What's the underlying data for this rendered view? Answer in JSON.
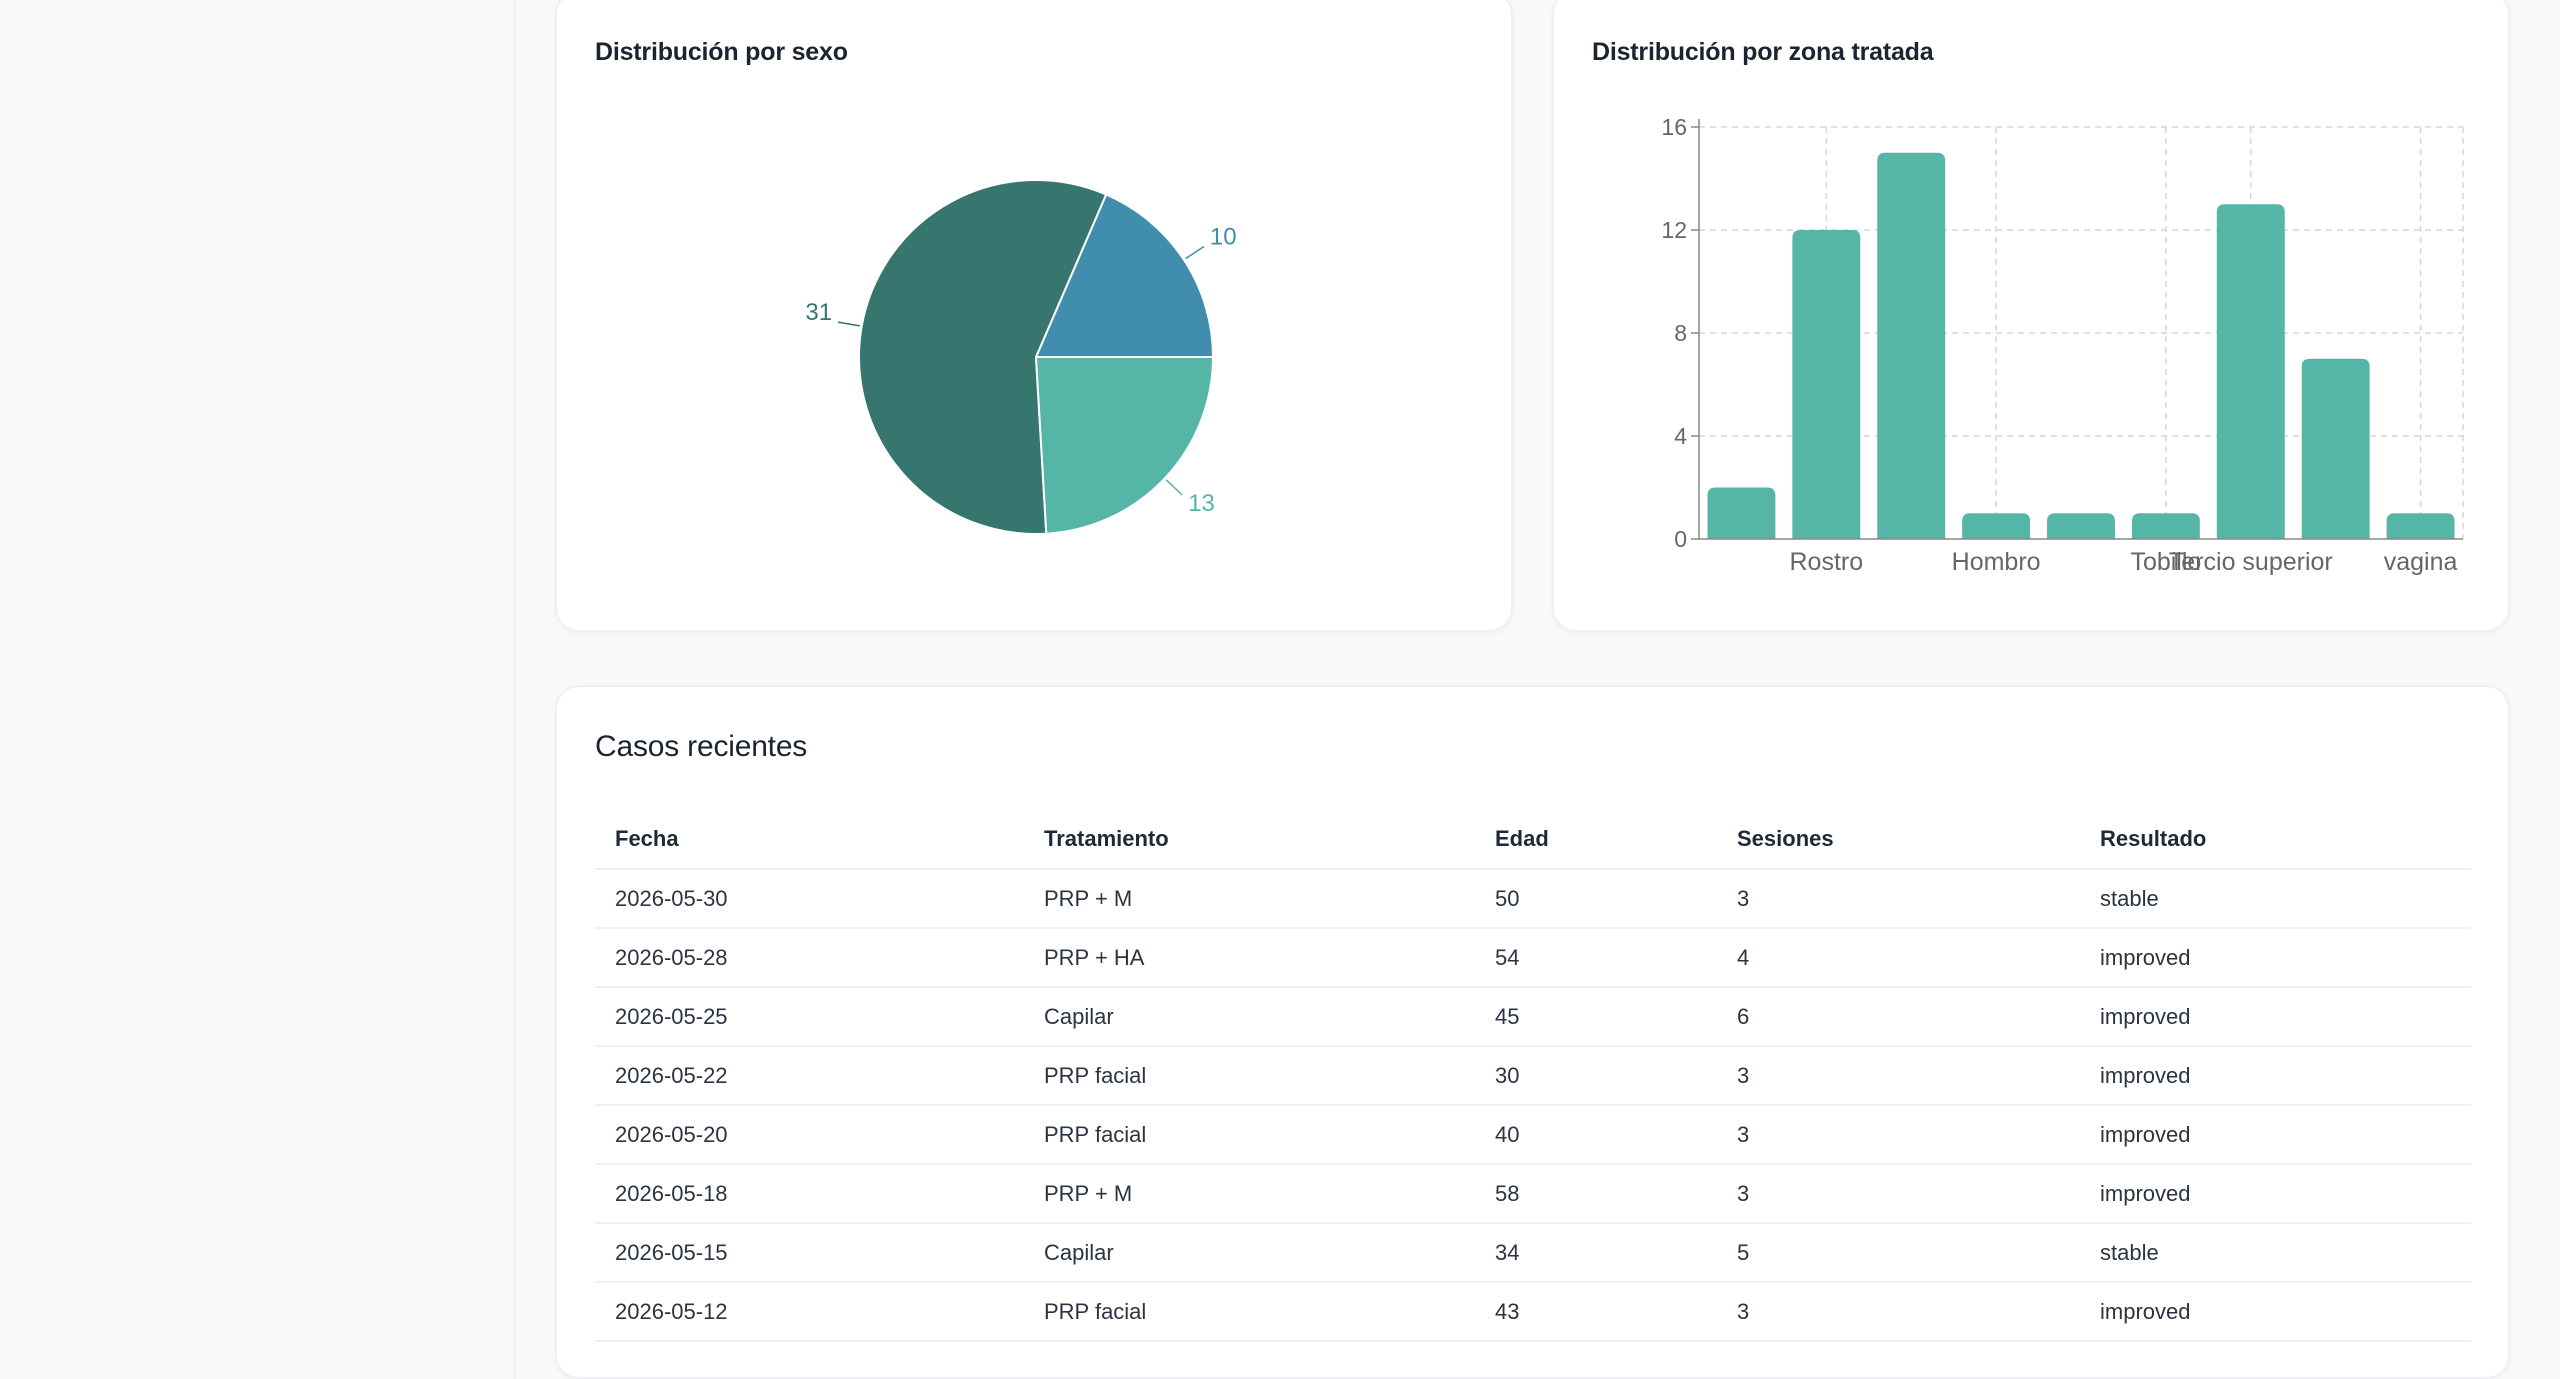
{
  "cards": {
    "sexo_title": "Distribución por sexo",
    "zona_title": "Distribución por zona tratada",
    "casos_title": "Casos recientes"
  },
  "colors": {
    "teal_light": "#55b5a6",
    "teal_dark": "#36766e",
    "blue": "#418dae"
  },
  "chart_data": [
    {
      "type": "pie",
      "title": "Distribución por sexo",
      "slices": [
        {
          "value": 10,
          "color": "#418dae"
        },
        {
          "value": 31,
          "color": "#36766e"
        },
        {
          "value": 13,
          "color": "#55b5a6"
        }
      ]
    },
    {
      "type": "bar",
      "title": "Distribución por zona tratada",
      "categories": [
        "",
        "Rostro",
        "",
        "Hombro",
        "",
        "Tobillo",
        "Tercio superior",
        "",
        "vagina"
      ],
      "values": [
        2,
        12,
        15,
        1,
        1,
        1,
        13,
        7,
        1
      ],
      "ylim": [
        0,
        16
      ],
      "yticks": [
        0,
        4,
        8,
        12,
        16
      ],
      "grid": true,
      "color": "#55b5a6"
    }
  ],
  "table": {
    "headers": [
      "Fecha",
      "Tratamiento",
      "Edad",
      "Sesiones",
      "Resultado"
    ],
    "rows": [
      [
        "2026-05-30",
        "PRP + M",
        "50",
        "3",
        "stable"
      ],
      [
        "2026-05-28",
        "PRP + HA",
        "54",
        "4",
        "improved"
      ],
      [
        "2026-05-25",
        "Capilar",
        "45",
        "6",
        "improved"
      ],
      [
        "2026-05-22",
        "PRP facial",
        "30",
        "3",
        "improved"
      ],
      [
        "2026-05-20",
        "PRP facial",
        "40",
        "3",
        "improved"
      ],
      [
        "2026-05-18",
        "PRP + M",
        "58",
        "3",
        "improved"
      ],
      [
        "2026-05-15",
        "Capilar",
        "34",
        "5",
        "stable"
      ],
      [
        "2026-05-12",
        "PRP facial",
        "43",
        "3",
        "improved"
      ]
    ]
  }
}
